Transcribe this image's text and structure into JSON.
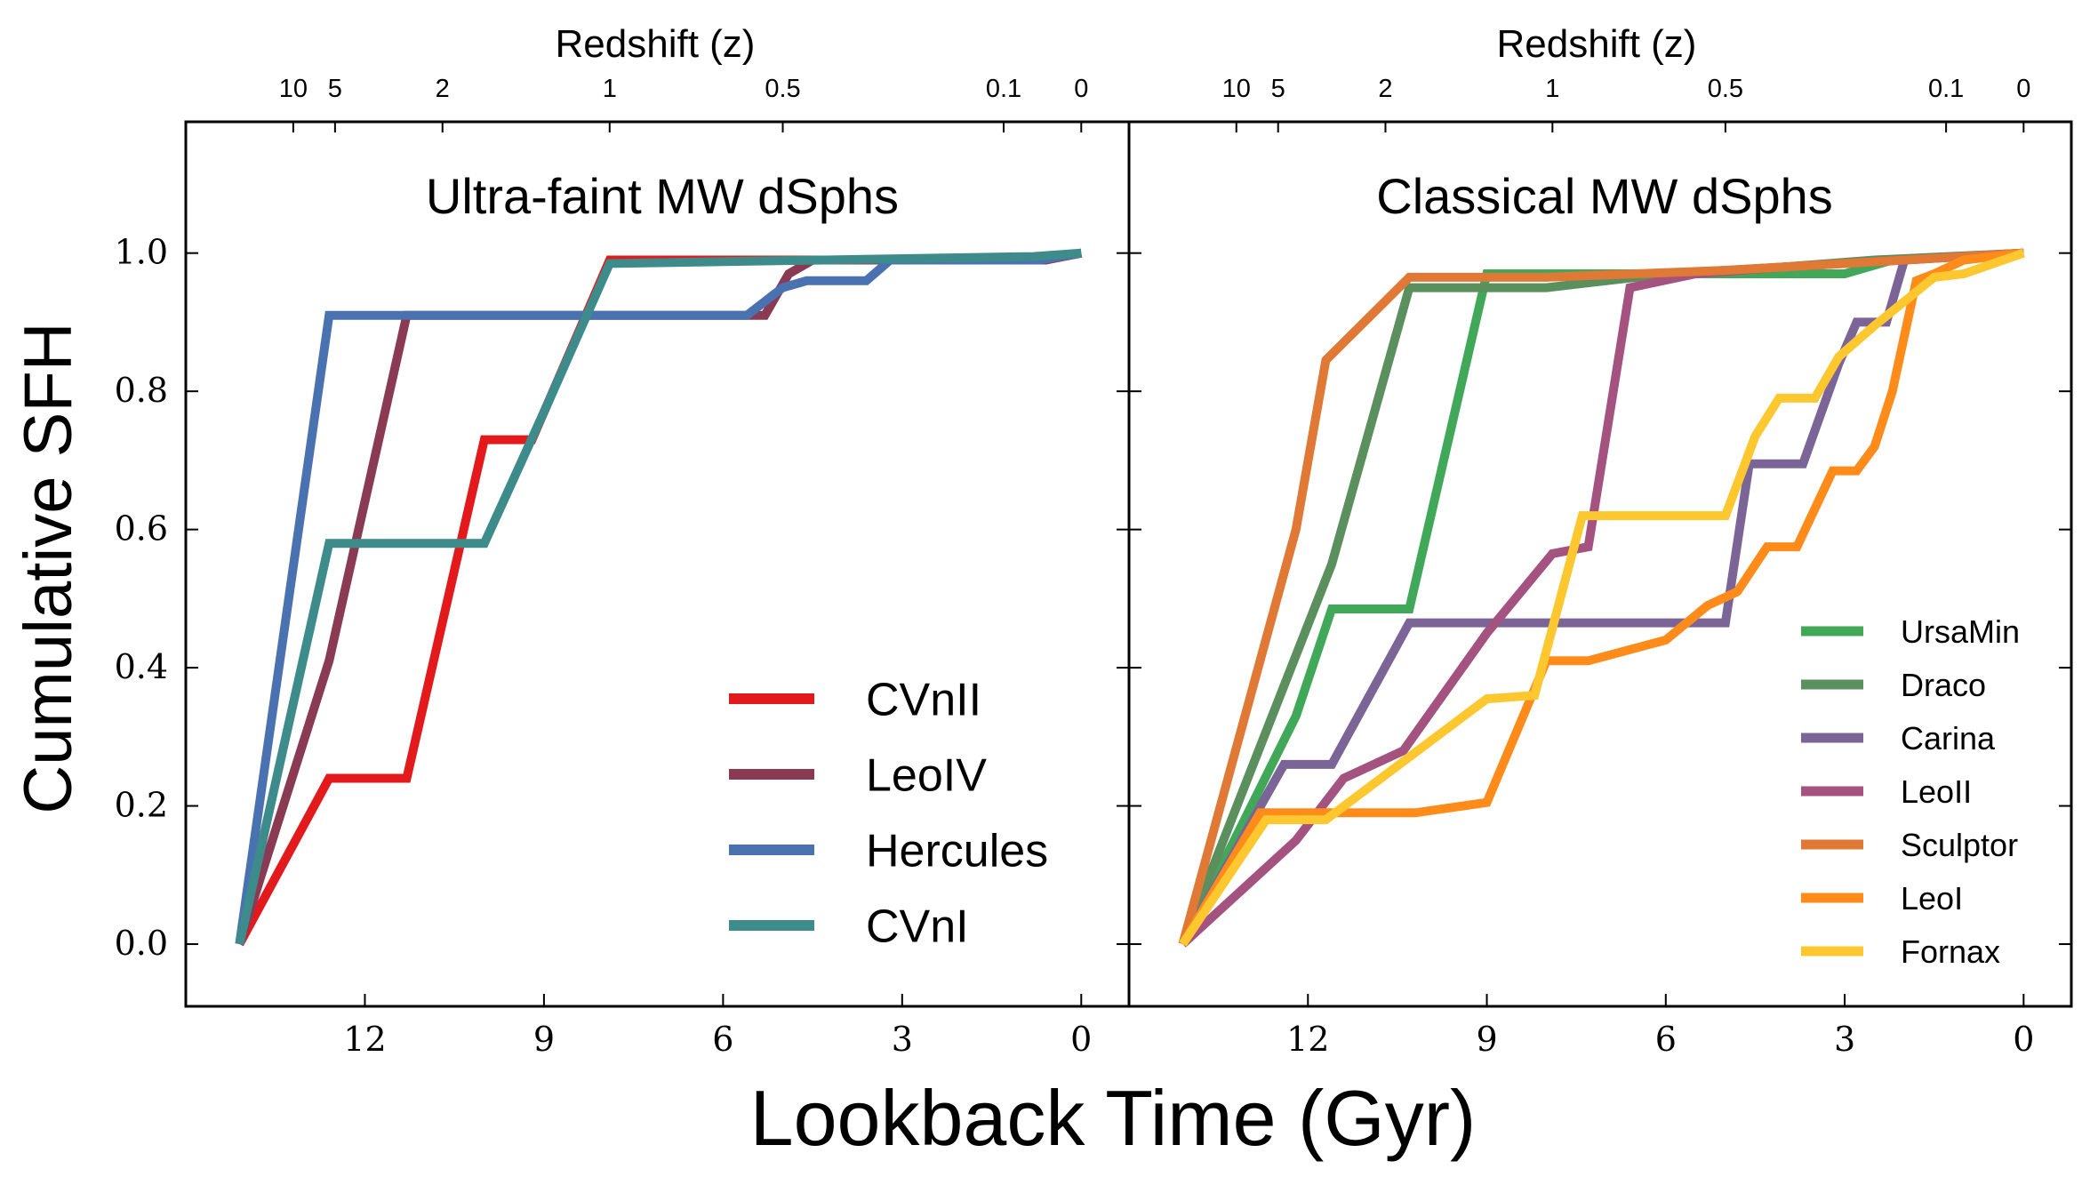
{
  "figure": {
    "ylabel": "Cumulative SFH",
    "xlabel": "Lookback Time (Gyr)",
    "top_axis_label": "Redshift (z)"
  },
  "chart_data": [
    {
      "type": "line",
      "title": "Ultra-faint MW dSphs",
      "xlabel": "Lookback Time (Gyr)",
      "ylabel": "Cumulative SFH",
      "xlim": [
        15,
        -0.8
      ],
      "ylim": [
        -0.09,
        1.19
      ],
      "x_inverted": true,
      "xticks": [
        12,
        9,
        6,
        3,
        0
      ],
      "yticks": [
        0.0,
        0.2,
        0.4,
        0.6,
        0.8,
        1.0
      ],
      "top_axis": {
        "label": "Redshift (z)",
        "ticks": [
          {
            "label": "10",
            "t": 13.2
          },
          {
            "label": "5",
            "t": 12.5
          },
          {
            "label": "2",
            "t": 10.7
          },
          {
            "label": "1",
            "t": 7.9
          },
          {
            "label": "0.5",
            "t": 5.0
          },
          {
            "label": "0.1",
            "t": 1.3
          },
          {
            "label": "0",
            "t": 0.0
          }
        ]
      },
      "legend": "lower-right",
      "series": [
        {
          "name": "CVnII",
          "color": "#e31a1c",
          "x": [
            14.1,
            12.6,
            11.3,
            10.0,
            9.2,
            7.9,
            0.6,
            0.0
          ],
          "y": [
            0.0,
            0.24,
            0.24,
            0.73,
            0.73,
            0.99,
            0.99,
            1.0
          ]
        },
        {
          "name": "LeoIV",
          "color": "#8b3a54",
          "x": [
            14.1,
            12.6,
            11.3,
            5.3,
            4.9,
            4.5,
            3.0,
            0.6,
            0.0
          ],
          "y": [
            0.0,
            0.41,
            0.91,
            0.91,
            0.97,
            0.99,
            0.99,
            0.99,
            1.0
          ]
        },
        {
          "name": "Hercules",
          "color": "#4a72b0",
          "x": [
            14.1,
            12.6,
            5.6,
            5.0,
            4.6,
            3.6,
            3.2,
            0.7,
            0.0
          ],
          "y": [
            0.0,
            0.91,
            0.91,
            0.95,
            0.96,
            0.96,
            0.99,
            0.99,
            1.0
          ]
        },
        {
          "name": "CVnI",
          "color": "#3d8b8b",
          "x": [
            14.1,
            12.6,
            10.0,
            9.0,
            7.9,
            0.8,
            0.0
          ],
          "y": [
            0.0,
            0.58,
            0.58,
            0.77,
            0.985,
            0.995,
            1.0
          ]
        }
      ]
    },
    {
      "type": "line",
      "title": "Classical MW dSphs",
      "xlabel": "Lookback Time (Gyr)",
      "ylabel": "Cumulative SFH",
      "xlim": [
        15,
        -0.8
      ],
      "ylim": [
        -0.09,
        1.19
      ],
      "x_inverted": true,
      "xticks": [
        12,
        9,
        6,
        3,
        0
      ],
      "yticks": [
        0.0,
        0.2,
        0.4,
        0.6,
        0.8,
        1.0
      ],
      "top_axis": {
        "label": "Redshift (z)",
        "ticks": [
          {
            "label": "10",
            "t": 13.2
          },
          {
            "label": "5",
            "t": 12.5
          },
          {
            "label": "2",
            "t": 10.7
          },
          {
            "label": "1",
            "t": 7.9
          },
          {
            "label": "0.5",
            "t": 5.0
          },
          {
            "label": "0.1",
            "t": 1.3
          },
          {
            "label": "0",
            "t": 0.0
          }
        ]
      },
      "legend": "lower-right",
      "series": [
        {
          "name": "UrsaMin",
          "color": "#41a85a",
          "x": [
            14.1,
            12.2,
            11.6,
            10.3,
            9.0,
            7.0,
            5.0,
            3.0,
            2.2,
            0.0
          ],
          "y": [
            0.0,
            0.33,
            0.485,
            0.485,
            0.97,
            0.97,
            0.97,
            0.97,
            0.99,
            1.0
          ]
        },
        {
          "name": "Draco",
          "color": "#5b8f5d",
          "x": [
            14.1,
            11.6,
            10.3,
            8.0,
            6.0,
            4.0,
            2.5,
            0.0
          ],
          "y": [
            0.0,
            0.55,
            0.95,
            0.95,
            0.97,
            0.98,
            0.99,
            1.0
          ]
        },
        {
          "name": "Carina",
          "color": "#7b6597",
          "x": [
            14.1,
            12.4,
            11.6,
            10.3,
            5.0,
            4.6,
            3.7,
            3.1,
            2.8,
            2.3,
            2.0,
            0.0
          ],
          "y": [
            0.0,
            0.26,
            0.26,
            0.465,
            0.465,
            0.695,
            0.695,
            0.84,
            0.9,
            0.9,
            0.99,
            1.0
          ]
        },
        {
          "name": "LeoII",
          "color": "#a4527f",
          "x": [
            14.1,
            12.2,
            11.4,
            10.4,
            9.0,
            7.9,
            7.3,
            6.6,
            5.5,
            4.0,
            2.0,
            0.0
          ],
          "y": [
            0.0,
            0.15,
            0.24,
            0.28,
            0.45,
            0.565,
            0.575,
            0.95,
            0.97,
            0.98,
            0.99,
            1.0
          ]
        },
        {
          "name": "Sculptor",
          "color": "#e07836",
          "x": [
            14.1,
            12.2,
            11.7,
            10.3,
            8.0,
            5.0,
            3.0,
            0.0
          ],
          "y": [
            0.0,
            0.6,
            0.845,
            0.965,
            0.965,
            0.975,
            0.985,
            1.0
          ]
        },
        {
          "name": "LeoI",
          "color": "#ff8c1a",
          "x": [
            14.1,
            12.8,
            10.2,
            9.0,
            8.0,
            7.3,
            6.0,
            5.3,
            4.8,
            4.3,
            3.8,
            3.2,
            2.8,
            2.5,
            2.2,
            1.8,
            1.5,
            1.0,
            0.0
          ],
          "y": [
            0.0,
            0.19,
            0.19,
            0.205,
            0.41,
            0.41,
            0.44,
            0.49,
            0.51,
            0.575,
            0.575,
            0.685,
            0.685,
            0.72,
            0.8,
            0.96,
            0.97,
            0.99,
            1.0
          ]
        },
        {
          "name": "Fornax",
          "color": "#fdc82f",
          "x": [
            14.1,
            12.7,
            11.7,
            9.0,
            8.2,
            7.4,
            5.0,
            4.5,
            4.1,
            3.5,
            3.1,
            2.5,
            1.5,
            1.0,
            0.0
          ],
          "y": [
            0.0,
            0.18,
            0.18,
            0.355,
            0.36,
            0.62,
            0.62,
            0.735,
            0.79,
            0.79,
            0.85,
            0.895,
            0.965,
            0.97,
            1.0
          ]
        }
      ]
    }
  ]
}
